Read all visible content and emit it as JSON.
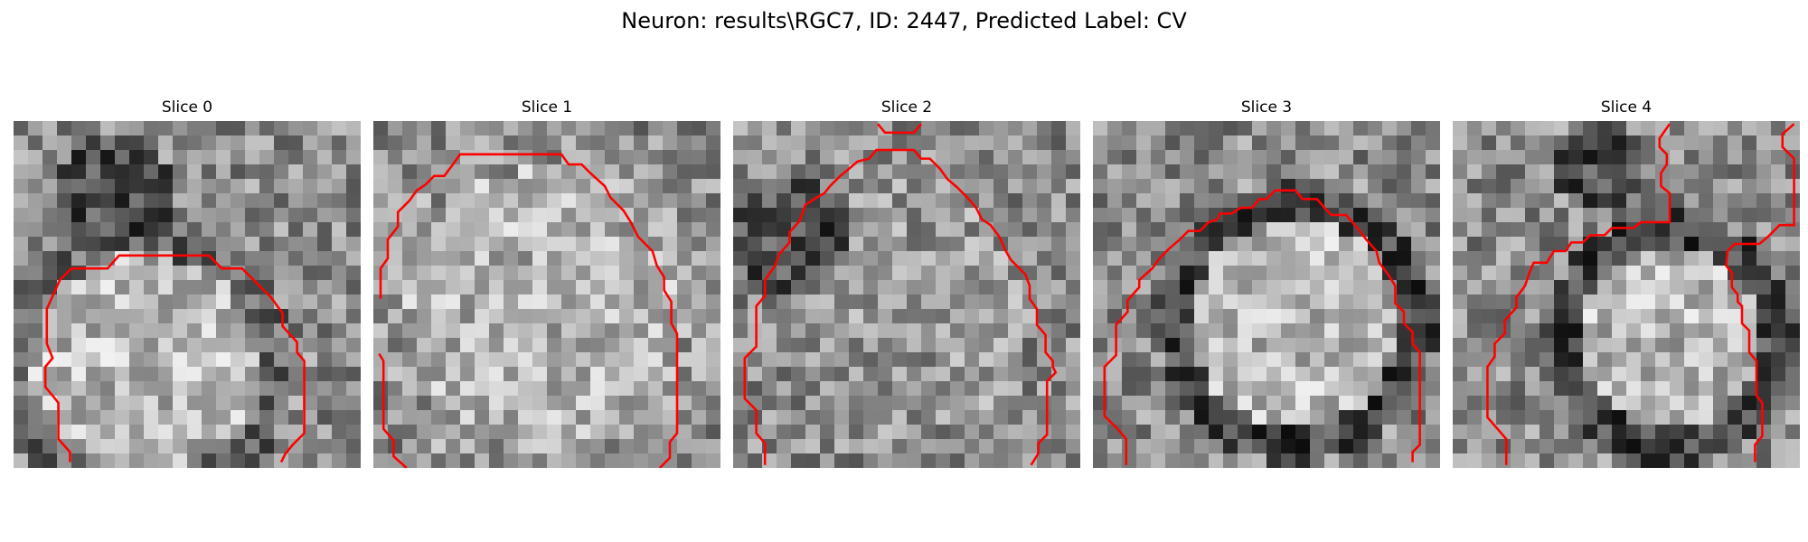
{
  "figure": {
    "title": "Neuron: results\\RGC7, ID: 2447, Predicted Label: CV",
    "colors": {
      "contour": "#ff0000",
      "background": "#ffffff"
    },
    "panels": [
      {
        "title": "Slice 0"
      },
      {
        "title": "Slice 1"
      },
      {
        "title": "Slice 2"
      },
      {
        "title": "Slice 3"
      },
      {
        "title": "Slice 4"
      }
    ]
  }
}
